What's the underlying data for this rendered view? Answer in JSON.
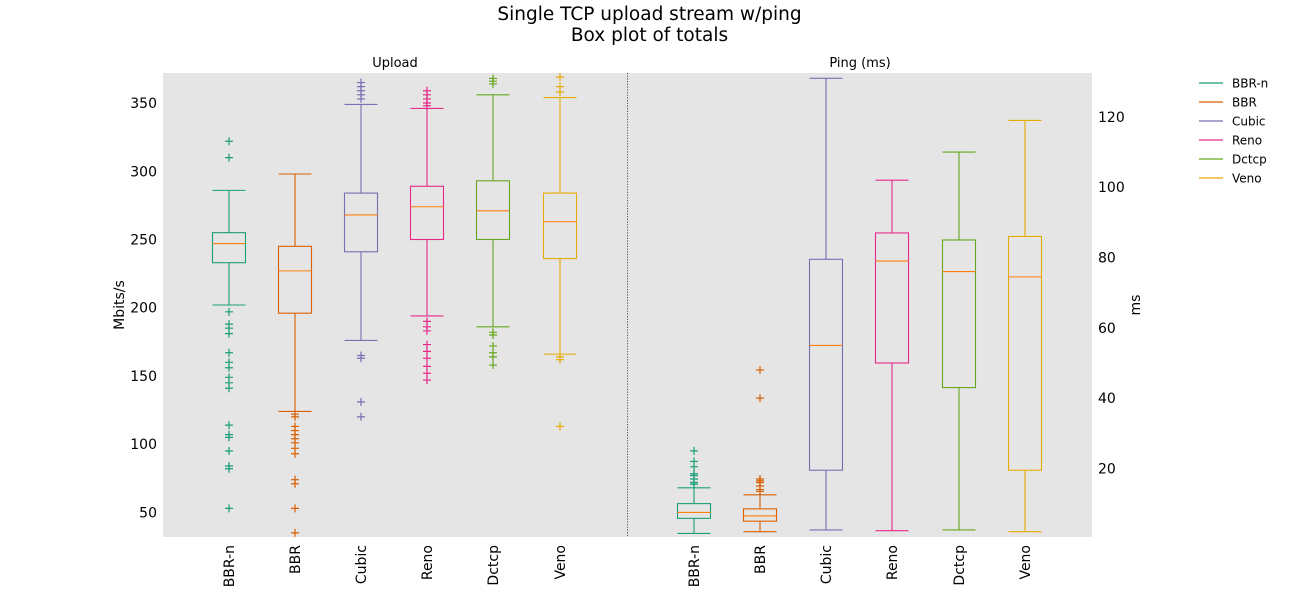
{
  "title": [
    "Single TCP upload stream w/ping",
    "Box plot of totals"
  ],
  "chart_data": [
    {
      "type": "box",
      "panel_title": "Upload",
      "ylabel": "Mbits/s",
      "ylim": [
        32,
        372
      ],
      "yticks": [
        50,
        100,
        150,
        200,
        250,
        300,
        350
      ],
      "categories": [
        "BBR-n",
        "BBR",
        "Cubic",
        "Reno",
        "Dctcp",
        "Veno"
      ],
      "boxes": [
        {
          "q1": 233,
          "median": 247,
          "q3": 255,
          "whislo": 202,
          "whishi": 286,
          "fliers": [
            322,
            310,
            197,
            188,
            185,
            181,
            167,
            160,
            156,
            149,
            145,
            141,
            114,
            107,
            105,
            95,
            84,
            82,
            53
          ]
        },
        {
          "q1": 196,
          "median": 227,
          "q3": 245,
          "whislo": 124,
          "whishi": 298,
          "fliers": [
            122,
            120,
            113,
            110,
            107,
            104,
            101,
            97,
            93,
            74,
            71,
            53,
            35
          ]
        },
        {
          "q1": 241,
          "median": 268,
          "q3": 284,
          "whislo": 176,
          "whishi": 349,
          "fliers": [
            365,
            362,
            359,
            356,
            353,
            165,
            163,
            131,
            120
          ]
        },
        {
          "q1": 250,
          "median": 274,
          "q3": 289,
          "whislo": 194,
          "whishi": 346,
          "fliers": [
            359,
            356,
            353,
            350,
            348,
            190,
            186,
            183,
            173,
            168,
            163,
            157,
            152,
            147
          ]
        },
        {
          "q1": 250,
          "median": 271,
          "q3": 293,
          "whislo": 186,
          "whishi": 356,
          "fliers": [
            368,
            366,
            364,
            182,
            180,
            172,
            167,
            164,
            158
          ]
        },
        {
          "q1": 236,
          "median": 263,
          "q3": 284,
          "whislo": 166,
          "whishi": 354,
          "fliers": [
            369,
            362,
            358,
            164,
            162,
            113
          ]
        }
      ]
    },
    {
      "type": "box",
      "panel_title": "Ping (ms)",
      "ylabel": "ms",
      "ylim": [
        0.5,
        132.5
      ],
      "yticks": [
        20,
        40,
        60,
        80,
        100,
        120
      ],
      "categories": [
        "BBR-n",
        "BBR",
        "Cubic",
        "Reno",
        "Dctcp",
        "Veno"
      ],
      "boxes": [
        {
          "q1": 5.8,
          "median": 7.5,
          "q3": 10,
          "whislo": 1.5,
          "whishi": 14.5,
          "fliers": [
            25,
            22,
            20.5,
            18.5,
            18,
            17,
            16,
            15.5
          ]
        },
        {
          "q1": 5,
          "median": 6.5,
          "q3": 8.5,
          "whislo": 2,
          "whishi": 12.5,
          "fliers": [
            48,
            40,
            17,
            16.5,
            16,
            15,
            14,
            13.5
          ]
        },
        {
          "q1": 19.5,
          "median": 55,
          "q3": 79.5,
          "whislo": 2.5,
          "whishi": 131,
          "fliers": []
        },
        {
          "q1": 50,
          "median": 79,
          "q3": 87,
          "whislo": 2.3,
          "whishi": 102,
          "fliers": []
        },
        {
          "q1": 43,
          "median": 76,
          "q3": 85,
          "whislo": 2.5,
          "whishi": 110,
          "fliers": []
        },
        {
          "q1": 19.5,
          "median": 74.5,
          "q3": 86,
          "whislo": 2,
          "whishi": 119,
          "fliers": []
        }
      ]
    }
  ],
  "legend": {
    "placement": "right",
    "entries": [
      "BBR-n",
      "BBR",
      "Cubic",
      "Reno",
      "Dctcp",
      "Veno"
    ]
  },
  "colors": {
    "series": [
      "#1b9e77",
      "#d95f02",
      "#7570b3",
      "#e7298a",
      "#66a61e",
      "#e6ab02"
    ],
    "median": "#ff7f0e",
    "background": "#e5e5e5",
    "separator": "#555555"
  }
}
